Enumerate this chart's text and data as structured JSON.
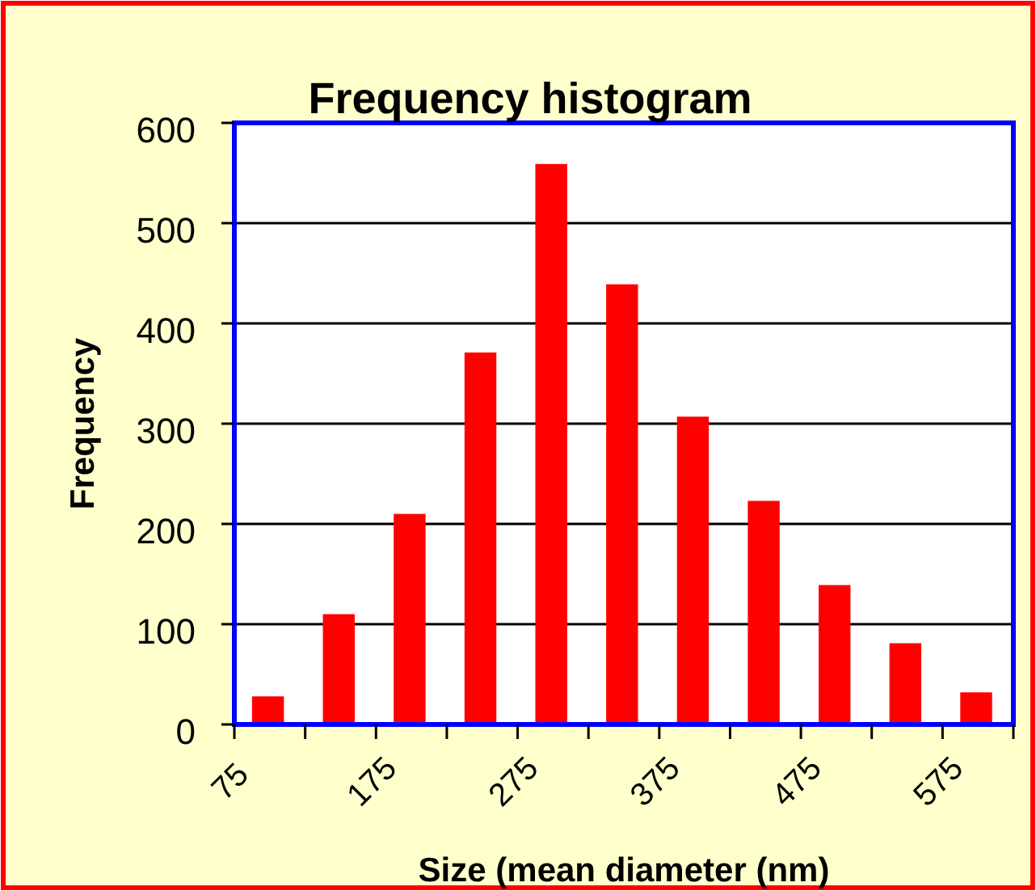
{
  "chart_data": {
    "type": "histogram",
    "title": "Frequency histogram",
    "xlabel": "Size (mean diameter (nm)",
    "ylabel": "Frequency",
    "bins": [
      75,
      125,
      175,
      225,
      275,
      325,
      375,
      425,
      475,
      525,
      575,
      625
    ],
    "values": [
      28,
      110,
      210,
      371,
      559,
      439,
      307,
      223,
      139,
      81,
      32
    ],
    "color": "#ff0000",
    "xlim": [
      75,
      625
    ],
    "xticks": [
      75,
      {
        "value": 125,
        "label": null
      },
      175,
      {
        "value": 225,
        "label": null
      },
      275,
      {
        "value": 325,
        "label": null
      },
      375,
      {
        "value": 425,
        "label": null
      },
      475,
      {
        "value": 525,
        "label": null
      },
      575,
      {
        "value": 625,
        "label": null
      }
    ],
    "ylim": [
      0,
      600
    ],
    "yticks": [
      0,
      100,
      200,
      300,
      400,
      500,
      600
    ],
    "grid": "y"
  }
}
